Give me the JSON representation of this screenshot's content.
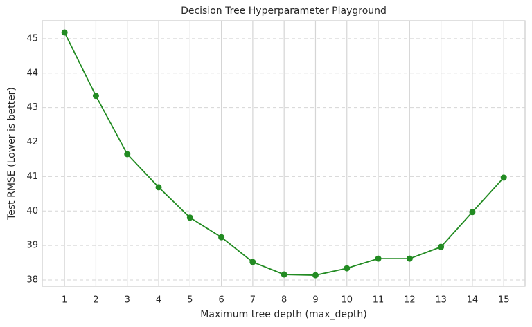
{
  "chart_data": {
    "type": "line",
    "title": "Decision Tree Hyperparameter Playground",
    "xlabel": "Maximum tree depth (max_depth)",
    "ylabel": "Test RMSE (Lower is better)",
    "x": [
      1,
      2,
      3,
      4,
      5,
      6,
      7,
      8,
      9,
      10,
      11,
      12,
      13,
      14,
      15
    ],
    "values": [
      45.18,
      43.34,
      41.65,
      40.69,
      39.81,
      39.24,
      38.52,
      38.16,
      38.14,
      38.34,
      38.62,
      38.62,
      38.96,
      39.97,
      40.97
    ],
    "color": "#228b22",
    "xlim": [
      0.29,
      15.68
    ],
    "ylim": [
      37.82,
      45.52
    ],
    "xticks": [
      1,
      2,
      3,
      4,
      5,
      6,
      7,
      8,
      9,
      10,
      11,
      12,
      13,
      14,
      15
    ],
    "yticks": [
      38,
      39,
      40,
      41,
      42,
      43,
      44,
      45
    ],
    "grid": true
  }
}
